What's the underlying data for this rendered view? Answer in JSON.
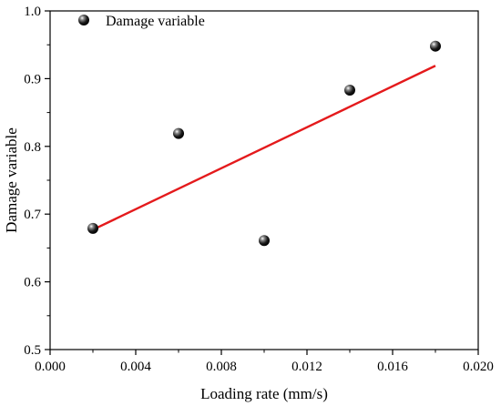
{
  "chart_data": {
    "type": "scatter",
    "title": "",
    "xlabel": "Loading rate (mm/s)",
    "ylabel": "Damage variable",
    "xlim": [
      0.0,
      0.02
    ],
    "ylim": [
      0.5,
      1.0
    ],
    "x_ticks": [
      0.0,
      0.004,
      0.008,
      0.012,
      0.016,
      0.02
    ],
    "x_tick_labels": [
      "0.000",
      "0.004",
      "0.008",
      "0.012",
      "0.016",
      "0.020"
    ],
    "y_ticks": [
      0.5,
      0.6,
      0.7,
      0.8,
      0.9,
      1.0
    ],
    "y_tick_labels": [
      "0.5",
      "0.6",
      "0.7",
      "0.8",
      "0.9",
      "1.0"
    ],
    "grid": false,
    "legend": {
      "position": "top-left",
      "entries": [
        "Damage variable"
      ]
    },
    "series": [
      {
        "name": "Damage variable",
        "type": "scatter",
        "color": "#111111",
        "x": [
          0.002,
          0.006,
          0.01,
          0.014,
          0.018
        ],
        "y": [
          0.679,
          0.819,
          0.661,
          0.883,
          0.948
        ]
      },
      {
        "type": "line",
        "color": "#e41a1c",
        "x": [
          0.002,
          0.018
        ],
        "y": [
          0.677,
          0.919
        ]
      }
    ]
  }
}
